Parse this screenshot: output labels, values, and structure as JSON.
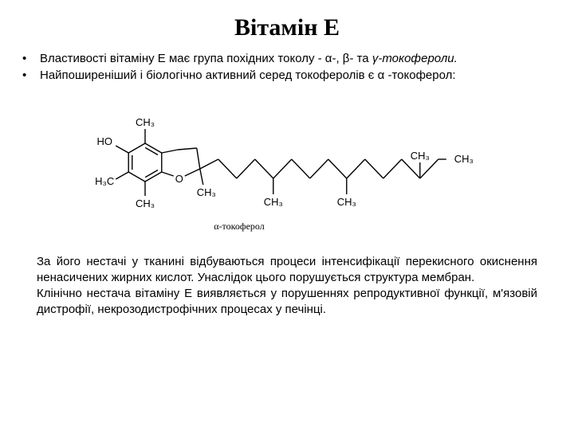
{
  "title": "Вітамін Е",
  "bullets": {
    "b1_pre": "Властивості вітаміну Е має група похідних токолу - α-, β- та ",
    "b1_it": "γ-токофероли.",
    "b2": "Найпоширеніший і біологічно активний серед токоферолів є  α -токоферол:"
  },
  "structure": {
    "labels": {
      "HO": "HO",
      "CH3_top": "CH₃",
      "CH3_left": "H₃C",
      "CH3_bottom": "CH₃",
      "O": "O",
      "CH3_r1": "CH₃",
      "CH3_r2": "CH₃",
      "CH3_r3": "CH₃",
      "CH3_r4": "CH₃",
      "CH3_r5": "CH₃"
    },
    "caption": "α-токоферол",
    "stroke": "#000000",
    "stroke_width": 1.4,
    "font_size": 13,
    "caption_font_size": 12
  },
  "paragraphs": {
    "p1": "За його нестачі у тканині відбуваються процеси інтенсифікації перекисного окиснення ненасичених жирних кислот. Унаслідок цього порушується структура мембран.",
    "p2": "Клінічно нестача вітаміну Е виявляється у порушеннях репродуктивної функції, м'язовій дистрофії, некрозодистрофічних процесах у печінці."
  }
}
